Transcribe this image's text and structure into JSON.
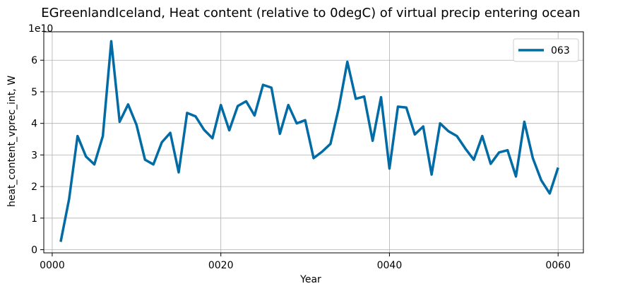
{
  "chart_data": {
    "type": "line",
    "title": "EGreenlandIceland, Heat content (relative to 0degC) of virtual precip entering ocean",
    "xlabel": "Year",
    "ylabel": "heat_content_vprec_int, W",
    "y_scale_note": "1e10",
    "xlim": [
      -1,
      63
    ],
    "ylim": [
      -0.1,
      6.9
    ],
    "x_ticks": [
      0,
      20,
      40,
      60
    ],
    "x_tick_labels": [
      "0000",
      "0020",
      "0040",
      "0060"
    ],
    "y_ticks": [
      0,
      1,
      2,
      3,
      4,
      5,
      6
    ],
    "y_tick_labels": [
      "0",
      "1",
      "2",
      "3",
      "4",
      "5",
      "6"
    ],
    "grid": true,
    "legend_position": "top-right",
    "series": [
      {
        "name": "063",
        "color": "#006ba4",
        "x": [
          1,
          2,
          3,
          4,
          5,
          6,
          7,
          8,
          9,
          10,
          11,
          12,
          13,
          14,
          15,
          16,
          17,
          18,
          19,
          20,
          21,
          22,
          23,
          24,
          25,
          26,
          27,
          28,
          29,
          30,
          31,
          32,
          33,
          34,
          35,
          36,
          37,
          38,
          39,
          40,
          41,
          42,
          43,
          44,
          45,
          46,
          47,
          48,
          49,
          50,
          51,
          52,
          53,
          54,
          55,
          56,
          57,
          58,
          59,
          60
        ],
        "values": [
          0.25,
          1.6,
          3.6,
          2.95,
          2.7,
          3.6,
          6.6,
          4.05,
          4.6,
          3.95,
          2.85,
          2.7,
          3.4,
          3.7,
          2.45,
          4.33,
          4.22,
          3.8,
          3.53,
          4.58,
          3.78,
          4.55,
          4.7,
          4.25,
          5.22,
          5.13,
          3.67,
          4.58,
          4.0,
          4.1,
          2.9,
          3.1,
          3.35,
          4.5,
          5.95,
          4.78,
          4.85,
          3.45,
          4.83,
          2.57,
          4.53,
          4.5,
          3.65,
          3.9,
          2.38,
          4.0,
          3.75,
          3.6,
          3.2,
          2.85,
          3.6,
          2.72,
          3.08,
          3.15,
          2.32,
          4.05,
          2.9,
          2.2,
          1.78,
          2.6
        ]
      }
    ]
  }
}
